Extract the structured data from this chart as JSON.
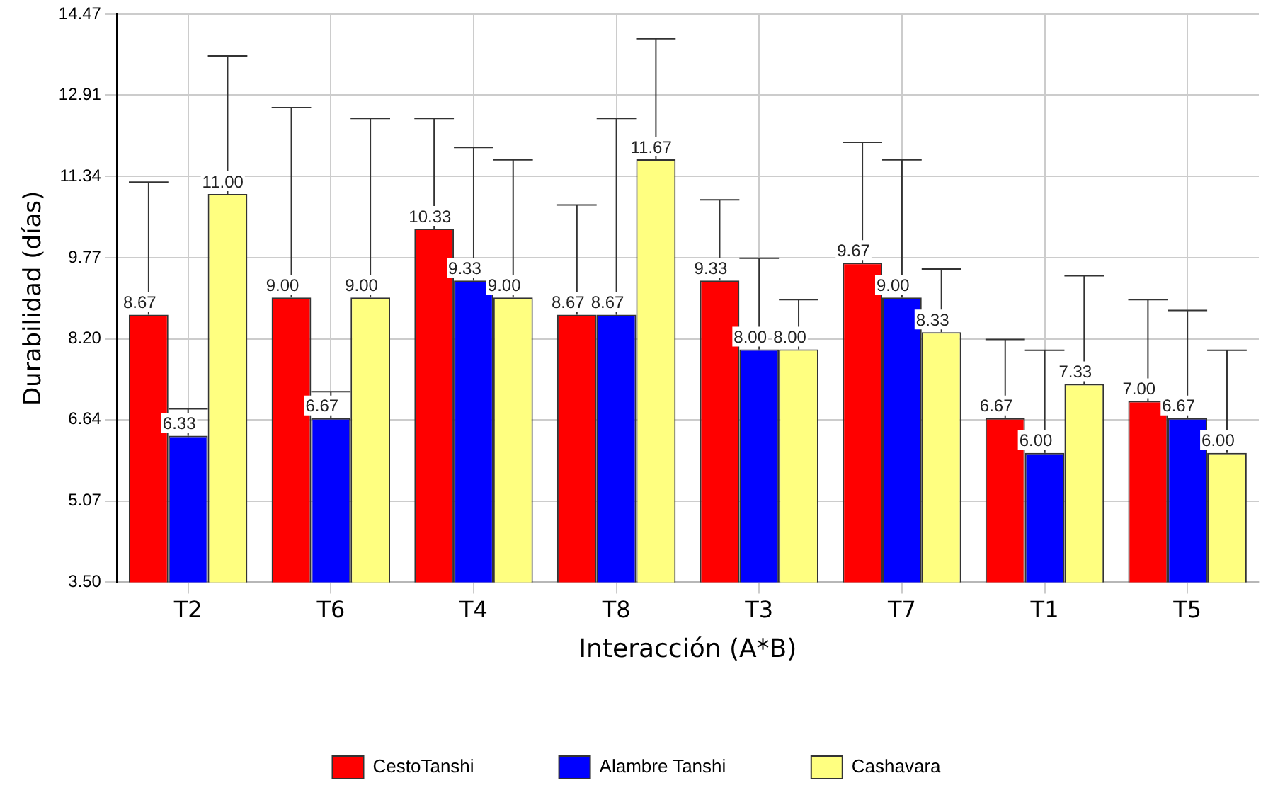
{
  "chart_data": {
    "type": "bar",
    "xlabel": "Interacción (A*B)",
    "ylabel": "Durabilidad (días)",
    "categories": [
      "T2",
      "T6",
      "T4",
      "T8",
      "T3",
      "T7",
      "T1",
      "T5"
    ],
    "series": [
      {
        "name": "CestoTanshi",
        "color": "#ff0000",
        "values": [
          8.67,
          9.0,
          10.33,
          8.67,
          9.33,
          9.67,
          6.67,
          7.0
        ],
        "value_labels": [
          "8.67",
          "9.00",
          "10.33",
          "8.67",
          "9.33",
          "9.67",
          "6.67",
          "7.00"
        ],
        "errors": [
          [
            8.67,
            11.23
          ],
          [
            9.0,
            12.67
          ],
          [
            10.33,
            12.46
          ],
          [
            8.67,
            10.79
          ],
          [
            9.33,
            10.89
          ],
          [
            9.67,
            12.0
          ],
          [
            6.67,
            8.19
          ],
          [
            7.0,
            8.96
          ]
        ]
      },
      {
        "name": "Alambre Tanshi",
        "color": "#0000ff",
        "values": [
          6.33,
          6.67,
          9.33,
          8.67,
          8.0,
          9.0,
          6.0,
          6.67
        ],
        "value_labels": [
          "6.33",
          "6.67",
          "9.33",
          "8.67",
          "8.00",
          "9.00",
          "6.00",
          "6.67"
        ],
        "errors": [
          [
            6.33,
            6.85
          ],
          [
            6.67,
            7.18
          ],
          [
            9.33,
            11.9
          ],
          [
            8.67,
            12.46
          ],
          [
            8.0,
            9.76
          ],
          [
            9.0,
            11.66
          ],
          [
            6.0,
            7.98
          ],
          [
            6.67,
            8.75
          ]
        ]
      },
      {
        "name": "Cashavara",
        "color": "#ffff80",
        "values": [
          11.0,
          9.0,
          9.0,
          11.67,
          8.0,
          8.33,
          7.33,
          6.0
        ],
        "value_labels": [
          "11.00",
          "9.00",
          "9.00",
          "11.67",
          "8.00",
          "8.33",
          "7.33",
          "6.00"
        ],
        "errors": [
          [
            11.0,
            13.67
          ],
          [
            9.0,
            12.46
          ],
          [
            9.0,
            11.66
          ],
          [
            11.67,
            14.0
          ],
          [
            8.0,
            8.96
          ],
          [
            8.33,
            9.55
          ],
          [
            7.33,
            9.42
          ],
          [
            6.0,
            7.98
          ]
        ]
      }
    ],
    "ylim": [
      3.5,
      14.47
    ],
    "yticks": [
      {
        "value": 3.5,
        "label": "3.50"
      },
      {
        "value": 5.07,
        "label": "5.07"
      },
      {
        "value": 6.64,
        "label": "6.64"
      },
      {
        "value": 8.2,
        "label": "8.20"
      },
      {
        "value": 9.77,
        "label": "9.77"
      },
      {
        "value": 11.34,
        "label": "11.34"
      },
      {
        "value": 12.91,
        "label": "12.91"
      },
      {
        "value": 14.47,
        "label": "14.47"
      }
    ],
    "grid": true,
    "legend": "bottom"
  }
}
